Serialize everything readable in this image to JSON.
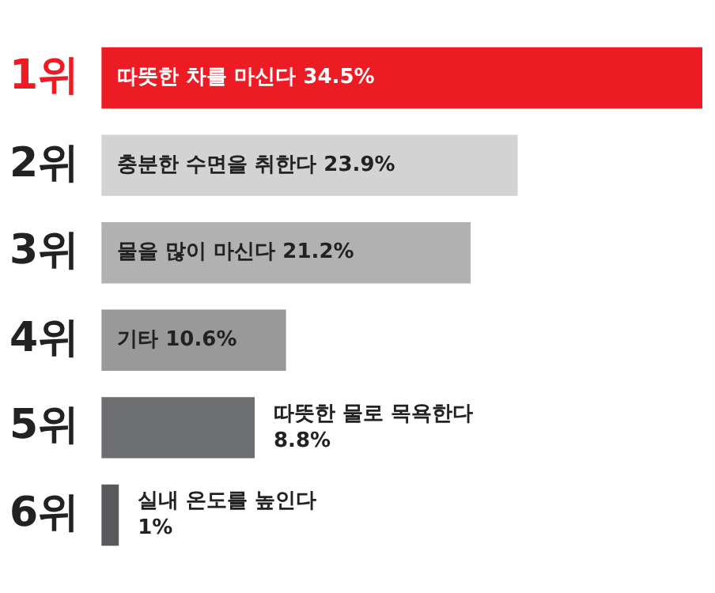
{
  "chart_data": {
    "type": "bar",
    "orientation": "horizontal",
    "categories": [
      "1위",
      "2위",
      "3위",
      "4위",
      "5위",
      "6위"
    ],
    "values": [
      34.5,
      23.9,
      21.2,
      10.6,
      8.8,
      1
    ],
    "colors": [
      "#ed1c24",
      "#d3d3d3",
      "#b1b1b1",
      "#999999",
      "#6d6e70",
      "#58595b"
    ],
    "value_labels": [
      "따뜻한 차를 마신다 34.5%",
      "충분한 수면을 취한다 23.9%",
      "물을 많이 마신다 21.2%",
      "기타 10.6%",
      "따뜻한 물로 목욕한다\n8.8%",
      "실내 온도를 높인다\n1%"
    ],
    "legend": false
  }
}
